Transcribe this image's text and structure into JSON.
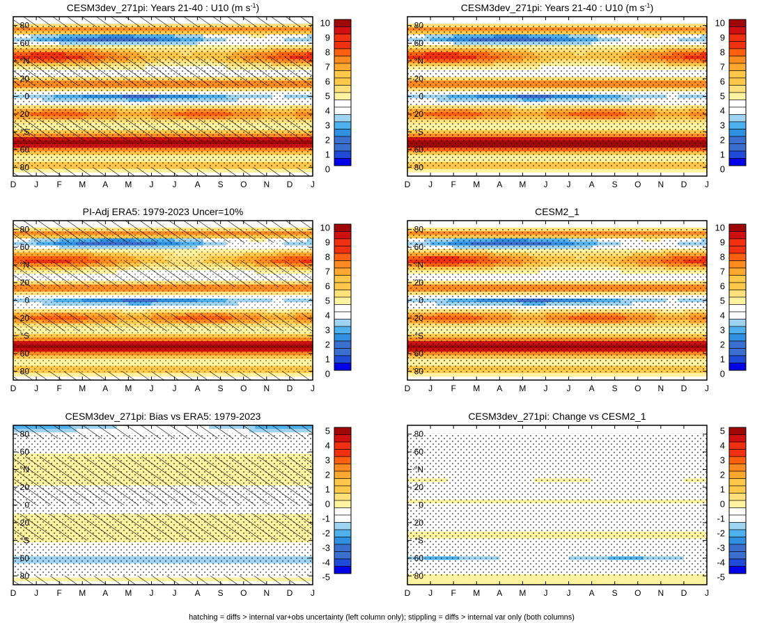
{
  "figure": {
    "footnote": "hatching = diffs > internal var+obs uncertainty (left column only); stippling = diffs > internal var only (both columns)"
  },
  "colors": {
    "full": [
      "#0000e8",
      "#1f4bd8",
      "#3a6fd0",
      "#2f8fe0",
      "#4fb0ee",
      "#9fd4f0",
      "#ffffff",
      "#fff2a0",
      "#ffe07a",
      "#ffc84a",
      "#ffa830",
      "#ff8a20",
      "#ff6010",
      "#f03010",
      "#d01010",
      "#a00808"
    ],
    "diff": [
      "#0000e8",
      "#1f4bd8",
      "#3a6fd0",
      "#2f8fe0",
      "#4fb0ee",
      "#9fd4f0",
      "#ffffff",
      "#fff2a0",
      "#ffe07a",
      "#ffc84a",
      "#ffa830",
      "#ff8a20",
      "#ff6010",
      "#f03010",
      "#d01010",
      "#a00808"
    ]
  },
  "chart_data": [
    {
      "id": "p1",
      "type": "heatmap",
      "title_pre": "CESM3dev_271pi: Years 21-40 : U10 (m s",
      "title_sup": "-1",
      "title_post": ")",
      "x_ticklabels": [
        "D",
        "J",
        "F",
        "M",
        "A",
        "M",
        "J",
        "J",
        "A",
        "S",
        "O",
        "N",
        "D",
        "J"
      ],
      "y_ticklabels": [
        "80",
        "60",
        "°N",
        "20",
        "0",
        "20",
        "°S",
        "60",
        "80"
      ],
      "y_ticks": [
        80,
        60,
        40,
        20,
        0,
        -20,
        -40,
        -60,
        -80
      ],
      "ylim": [
        -90,
        90
      ],
      "colorbar": {
        "levels": [
          "10",
          "9",
          "8",
          "7",
          "6",
          "5",
          "4",
          "3",
          "2",
          "1",
          "0"
        ],
        "scale": "full"
      },
      "hatching": [
        [
          -90,
          -80
        ],
        [
          -50,
          -25
        ],
        [
          12,
          45
        ],
        [
          78,
          90
        ]
      ],
      "stippling": "extensive"
    },
    {
      "id": "p2",
      "type": "heatmap",
      "title_pre": "CESM3dev_271pi: Years 21-40 : U10 (m s",
      "title_sup": "-1",
      "title_post": ")",
      "x_ticklabels": [
        "D",
        "J",
        "F",
        "M",
        "A",
        "M",
        "J",
        "J",
        "A",
        "S",
        "O",
        "N",
        "D",
        "J"
      ],
      "y_ticklabels": [
        "80",
        "60",
        "°N",
        "20",
        "0",
        "20",
        "°S",
        "60",
        "80"
      ],
      "y_ticks": [
        80,
        60,
        40,
        20,
        0,
        -20,
        -40,
        -60,
        -80
      ],
      "ylim": [
        -90,
        90
      ],
      "colorbar": {
        "levels": [
          "10",
          "9",
          "8",
          "7",
          "6",
          "5",
          "4",
          "3",
          "2",
          "1",
          "0"
        ],
        "scale": "full"
      },
      "hatching": [],
      "stippling": "extensive"
    },
    {
      "id": "p3",
      "type": "heatmap",
      "title_pre": "PI-Adj ERA5: 1979-2023 Uncer=10%",
      "title_sup": "",
      "title_post": "",
      "x_ticklabels": [
        "D",
        "J",
        "F",
        "M",
        "A",
        "M",
        "J",
        "J",
        "A",
        "S",
        "O",
        "N",
        "D",
        "J"
      ],
      "y_ticklabels": [
        "80",
        "60",
        "°N",
        "20",
        "0",
        "20",
        "°S",
        "60",
        "80"
      ],
      "y_ticks": [
        80,
        60,
        40,
        20,
        0,
        -20,
        -40,
        -60,
        -80
      ],
      "ylim": [
        -90,
        90
      ],
      "colorbar": {
        "levels": [
          "10",
          "9",
          "8",
          "7",
          "6",
          "5",
          "4",
          "3",
          "2",
          "1",
          "0"
        ],
        "scale": "full"
      },
      "hatching": [
        [
          -90,
          -80
        ],
        [
          -35,
          -15
        ],
        [
          15,
          45
        ],
        [
          65,
          90
        ]
      ],
      "stippling": "moderate"
    },
    {
      "id": "p4",
      "type": "heatmap",
      "title_pre": "CESM2_1",
      "title_sup": "",
      "title_post": "",
      "x_ticklabels": [
        "D",
        "J",
        "F",
        "M",
        "A",
        "M",
        "J",
        "J",
        "A",
        "S",
        "O",
        "N",
        "D",
        "J"
      ],
      "y_ticklabels": [
        "80",
        "60",
        "°N",
        "20",
        "0",
        "20",
        "°S",
        "60",
        "80"
      ],
      "y_ticks": [
        80,
        60,
        40,
        20,
        0,
        -20,
        -40,
        -60,
        -80
      ],
      "ylim": [
        -90,
        90
      ],
      "colorbar": {
        "levels": [
          "10",
          "9",
          "8",
          "7",
          "6",
          "5",
          "4",
          "3",
          "2",
          "1",
          "0"
        ],
        "scale": "full"
      },
      "hatching": [],
      "stippling": "extensive"
    },
    {
      "id": "p5",
      "type": "heatmap",
      "title_pre": "CESM3dev_271pi: Bias vs ERA5: 1979-2023",
      "title_sup": "",
      "title_post": "",
      "x_ticklabels": [
        "D",
        "J",
        "F",
        "M",
        "A",
        "M",
        "J",
        "J",
        "A",
        "S",
        "O",
        "N",
        "D",
        "J"
      ],
      "y_ticklabels": [
        "80",
        "60",
        "°N",
        "20",
        "0",
        "20",
        "°S",
        "60",
        "80"
      ],
      "y_ticks": [
        80,
        60,
        40,
        20,
        0,
        -20,
        -40,
        -60,
        -80
      ],
      "ylim": [
        -90,
        90
      ],
      "colorbar": {
        "levels": [
          "5",
          "4",
          "3",
          "2",
          "1",
          "0",
          "-1",
          "-2",
          "-3",
          "-4",
          "-5"
        ],
        "scale": "diff"
      },
      "hatching": [
        [
          -90,
          -80
        ],
        [
          -40,
          -10
        ],
        [
          0,
          55
        ],
        [
          75,
          90
        ]
      ],
      "stippling": "extensive"
    },
    {
      "id": "p6",
      "type": "heatmap",
      "title_pre": "CESM3dev_271pi: Change vs CESM2_1",
      "title_sup": "",
      "title_post": "",
      "x_ticklabels": [
        "D",
        "J",
        "F",
        "M",
        "A",
        "M",
        "J",
        "J",
        "A",
        "S",
        "O",
        "N",
        "D",
        "J"
      ],
      "y_ticklabels": [
        "80",
        "60",
        "°N",
        "20",
        "0",
        "20",
        "°S",
        "60",
        "80"
      ],
      "y_ticks": [
        80,
        60,
        40,
        20,
        0,
        -20,
        -40,
        -60,
        -80
      ],
      "ylim": [
        -90,
        90
      ],
      "colorbar": {
        "levels": [
          "5",
          "4",
          "3",
          "2",
          "1",
          "0",
          "-1",
          "-2",
          "-3",
          "-4",
          "-5"
        ],
        "scale": "diff"
      },
      "hatching": [],
      "stippling": "extensive"
    }
  ]
}
